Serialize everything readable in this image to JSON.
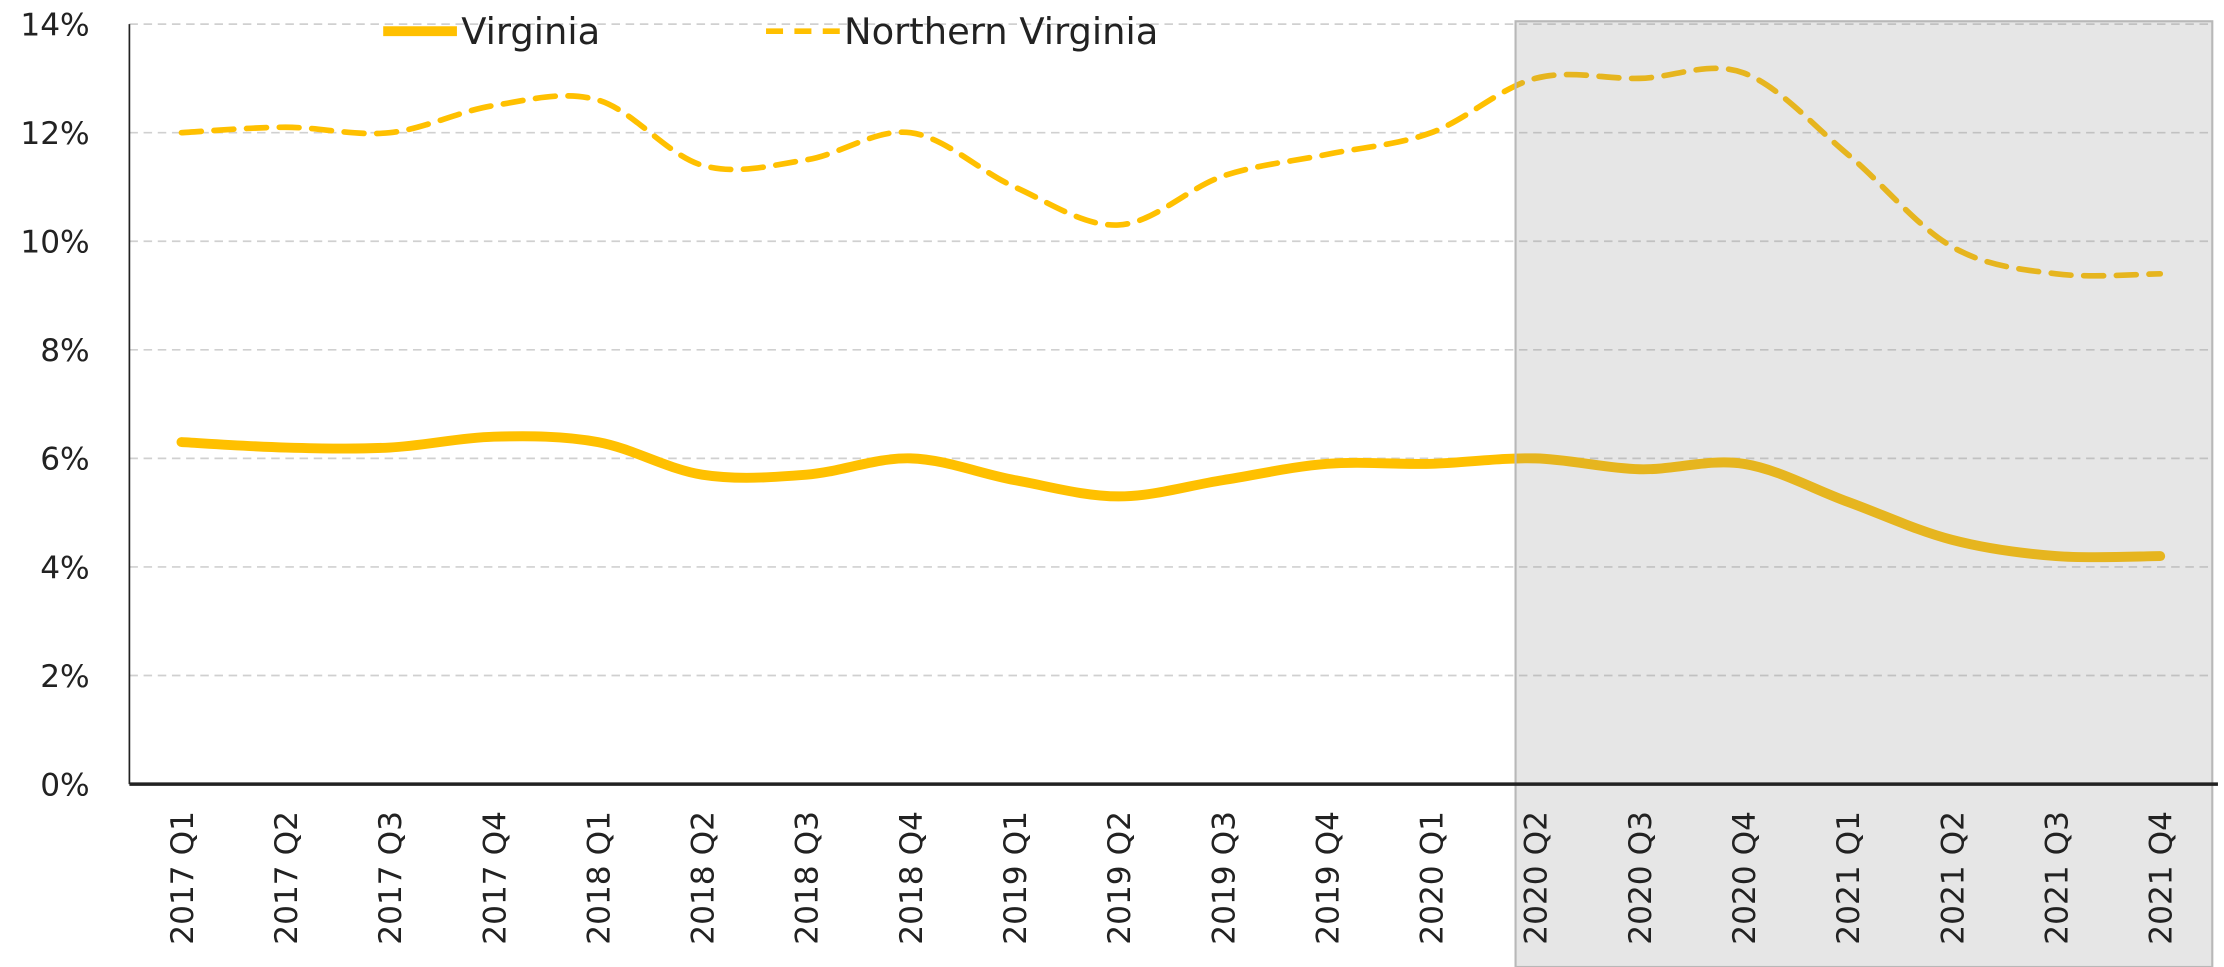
{
  "chart_data": {
    "type": "line",
    "categories": [
      "2017 Q1",
      "2017 Q2",
      "2017 Q3",
      "2017 Q4",
      "2018 Q1",
      "2018 Q2",
      "2018 Q3",
      "2018 Q4",
      "2019 Q1",
      "2019 Q2",
      "2019 Q3",
      "2019 Q4",
      "2020 Q1",
      "2020 Q2",
      "2020 Q3",
      "2020 Q4",
      "2021 Q1",
      "2021 Q2",
      "2021 Q3",
      "2021 Q4"
    ],
    "series": [
      {
        "name": "Virginia",
        "color": "#FFC000",
        "dash": false,
        "values": [
          6.3,
          6.2,
          6.2,
          6.4,
          6.3,
          5.7,
          5.7,
          6.0,
          5.6,
          5.3,
          5.6,
          5.9,
          5.9,
          6.0,
          5.8,
          5.9,
          5.2,
          4.5,
          4.2,
          4.2
        ]
      },
      {
        "name": "Northern Virginia",
        "color": "#FFC000",
        "dash": true,
        "values": [
          12.0,
          12.1,
          12.0,
          12.5,
          12.6,
          11.4,
          11.5,
          12.0,
          11.0,
          10.3,
          11.2,
          11.6,
          12.0,
          13.0,
          13.0,
          13.1,
          11.6,
          9.9,
          9.4,
          9.4
        ]
      }
    ],
    "ylim": [
      0,
      14
    ],
    "yticks": [
      {
        "value": 0,
        "label": "0%"
      },
      {
        "value": 2,
        "label": "2%"
      },
      {
        "value": 4,
        "label": "4%"
      },
      {
        "value": 6,
        "label": "6%"
      },
      {
        "value": 8,
        "label": "8%"
      },
      {
        "value": 10,
        "label": "10%"
      },
      {
        "value": 12,
        "label": "12%"
      },
      {
        "value": 14,
        "label": "14%"
      }
    ],
    "grid": true,
    "legend": "top",
    "shaded_from": "2020 Q2"
  }
}
